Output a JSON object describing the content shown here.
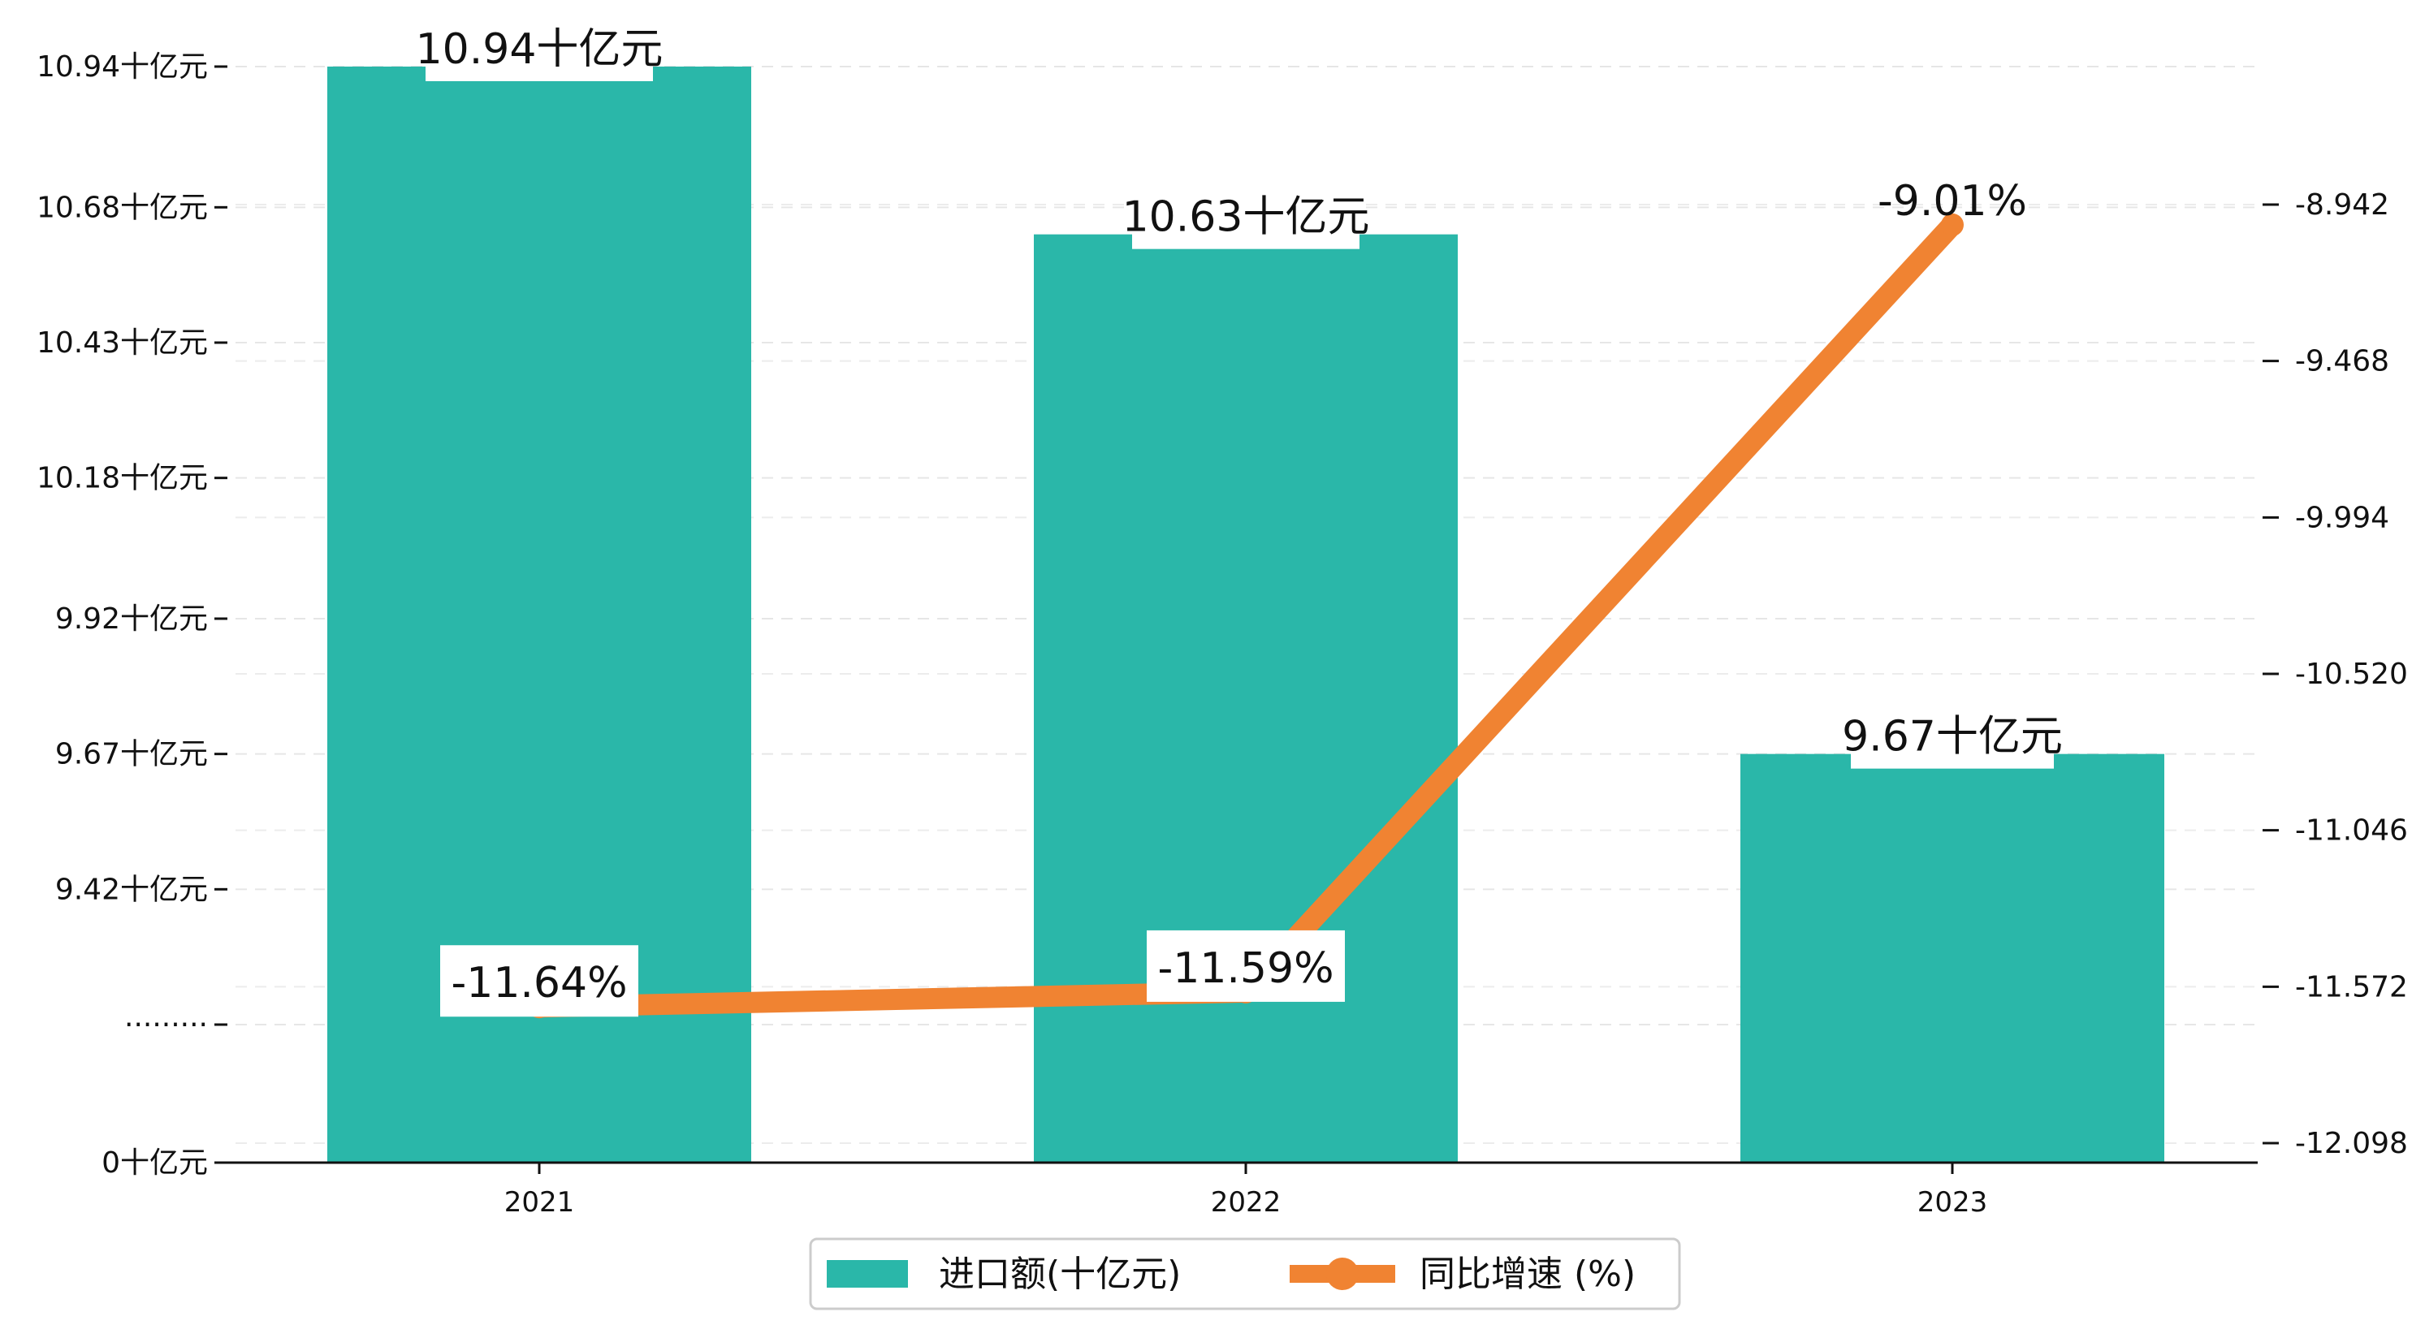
{
  "chart_data": {
    "type": "bar+line",
    "categories": [
      "2021",
      "2022",
      "2023"
    ],
    "series": [
      {
        "name": "进口额(十亿元)",
        "type": "bar",
        "axis": "left",
        "values": [
          10.94,
          10.63,
          9.67
        ],
        "labels": [
          "10.94十亿元",
          "10.63十亿元",
          "9.67十亿元"
        ],
        "color": "#2ab7a9"
      },
      {
        "name": "同比增速 (%)",
        "type": "line",
        "axis": "right",
        "values": [
          -11.64,
          -11.59,
          -9.01
        ],
        "labels": [
          "-11.64%",
          "-11.59%",
          "-9.01%"
        ],
        "color": "#f08332"
      }
    ],
    "left_axis": {
      "ticks": [
        {
          "value": 0,
          "label": "0十亿元"
        },
        {
          "value": 9.17,
          "label": "·········"
        },
        {
          "value": 9.42,
          "label": "9.42十亿元"
        },
        {
          "value": 9.67,
          "label": "9.67十亿元"
        },
        {
          "value": 9.92,
          "label": "9.92十亿元"
        },
        {
          "value": 10.18,
          "label": "10.18十亿元"
        },
        {
          "value": 10.43,
          "label": "10.43十亿元"
        },
        {
          "value": 10.68,
          "label": "10.68十亿元"
        },
        {
          "value": 10.94,
          "label": "10.94十亿元"
        }
      ],
      "break": "broken axis between 0 and 9.17"
    },
    "right_axis": {
      "range": [
        -12.098,
        -8.942
      ],
      "ticks": [
        -12.098,
        -11.572,
        -11.046,
        -10.52,
        -9.994,
        -9.468,
        -8.942
      ],
      "tick_labels": [
        "-12.098",
        "-11.572",
        "-11.046",
        "-10.520",
        "-9.994",
        "-9.468",
        "-8.942"
      ]
    },
    "grid": "horizontal dashed",
    "legend": "bottom-center",
    "xlabel": "",
    "ylabel": "",
    "title": ""
  },
  "legend": {
    "bar_label": "进口额(十亿元)",
    "line_label": "同比增速 (%)"
  }
}
